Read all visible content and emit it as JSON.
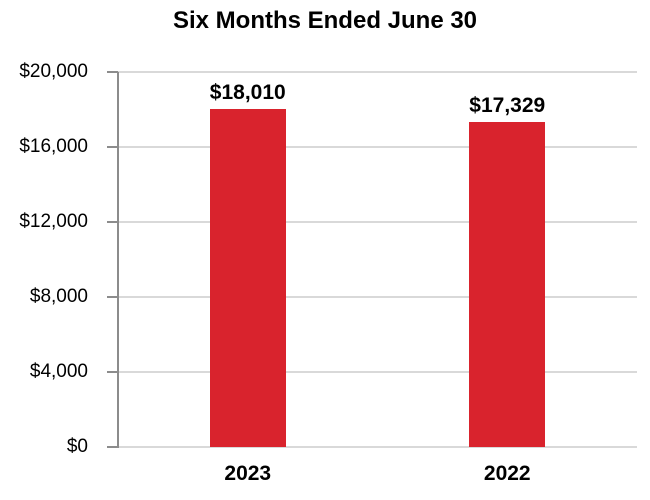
{
  "chart_data": {
    "type": "bar",
    "title": "Six Months Ended June 30",
    "categories": [
      "2023",
      "2022"
    ],
    "values": [
      18010,
      17329
    ],
    "value_labels": [
      "$18,010",
      "$17,329"
    ],
    "ylim": [
      0,
      20000
    ],
    "ytick_interval": 4000,
    "yticks": [
      {
        "value": 0,
        "label": "$0"
      },
      {
        "value": 4000,
        "label": "$4,000"
      },
      {
        "value": 8000,
        "label": "$8,000"
      },
      {
        "value": 12000,
        "label": "$12,000"
      },
      {
        "value": 16000,
        "label": "$16,000"
      },
      {
        "value": 20000,
        "label": "$20,000"
      }
    ],
    "xlabel": "",
    "ylabel": "",
    "grid": "horizontal",
    "legend_position": "none",
    "colors": {
      "bar": "#D9232D",
      "gridline": "#D9D9D9",
      "axis": "#8C8C8C",
      "text": "#000000",
      "background": "#FFFFFF"
    }
  }
}
